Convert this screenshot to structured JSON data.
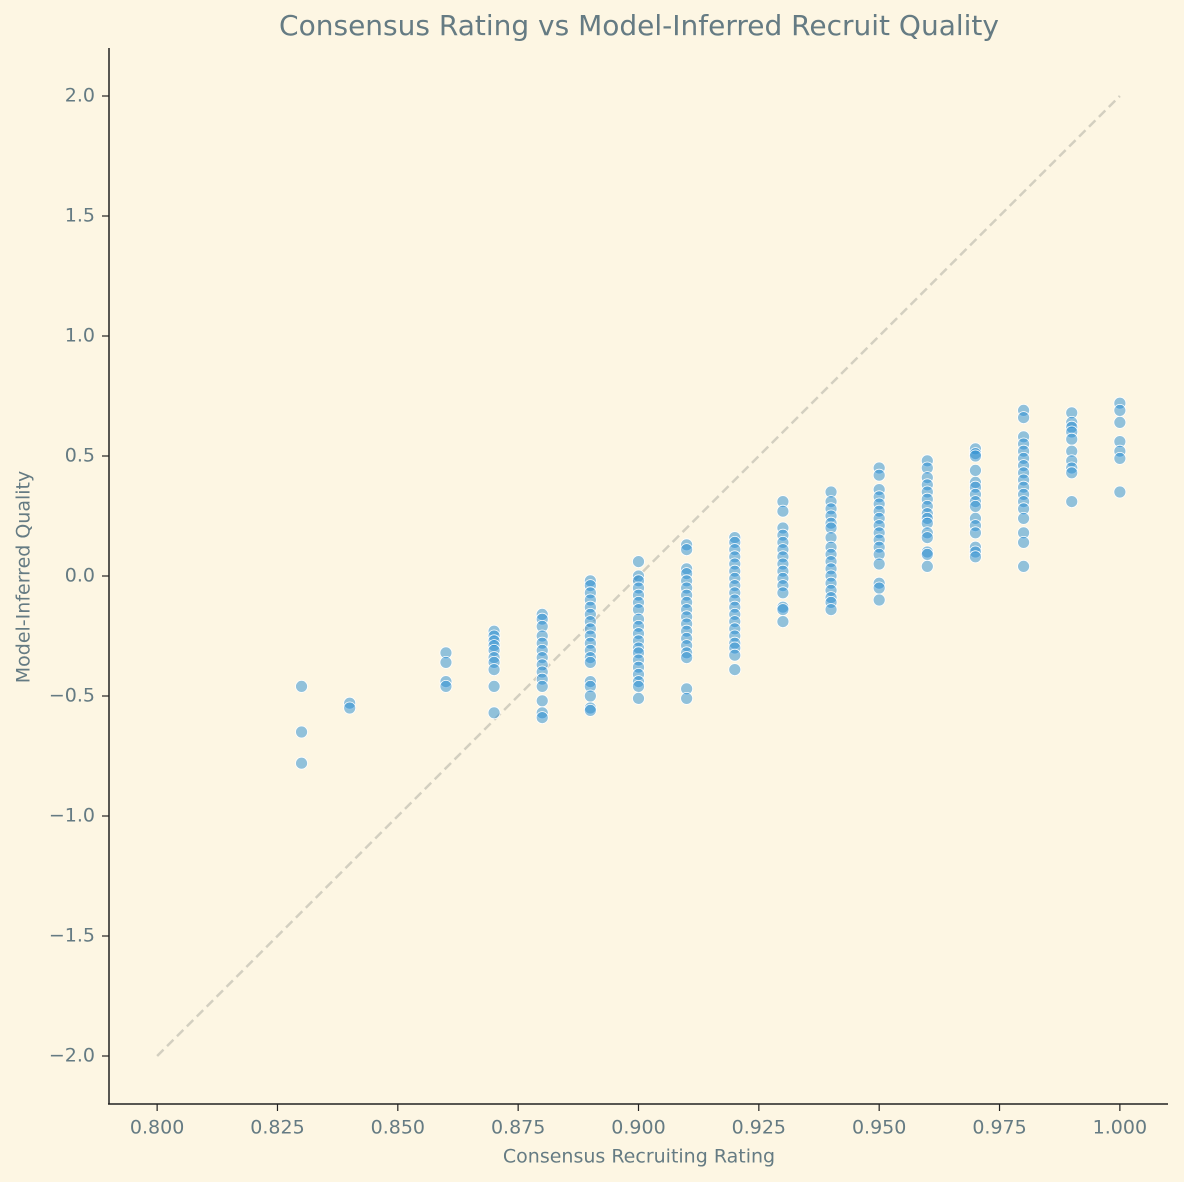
{
  "chart_data": {
    "type": "scatter",
    "title": "Consensus Rating vs Model-Inferred Recruit Quality",
    "x_label": "Consensus Recruiting Rating",
    "y_label": "Model-Inferred Quality",
    "color": "#268bd2",
    "x": [
      0.83,
      0.83,
      0.83,
      0.84,
      0.84,
      0.86,
      0.86,
      0.86,
      0.86,
      0.87,
      0.87,
      0.87,
      0.87,
      0.87,
      0.87,
      0.87,
      0.87,
      0.87,
      0.87,
      0.88,
      0.88,
      0.88,
      0.88,
      0.88,
      0.88,
      0.88,
      0.88,
      0.88,
      0.88,
      0.88,
      0.88,
      0.88,
      0.88,
      0.89,
      0.89,
      0.89,
      0.89,
      0.89,
      0.89,
      0.89,
      0.89,
      0.89,
      0.89,
      0.89,
      0.89,
      0.89,
      0.89,
      0.89,
      0.89,
      0.89,
      0.89,
      0.9,
      0.9,
      0.9,
      0.9,
      0.9,
      0.9,
      0.9,
      0.9,
      0.9,
      0.9,
      0.9,
      0.9,
      0.9,
      0.9,
      0.9,
      0.9,
      0.9,
      0.9,
      0.9,
      0.91,
      0.91,
      0.91,
      0.91,
      0.91,
      0.91,
      0.91,
      0.91,
      0.91,
      0.91,
      0.91,
      0.91,
      0.91,
      0.91,
      0.91,
      0.91,
      0.91,
      0.91,
      0.92,
      0.92,
      0.92,
      0.92,
      0.92,
      0.92,
      0.92,
      0.92,
      0.92,
      0.92,
      0.92,
      0.92,
      0.92,
      0.92,
      0.92,
      0.92,
      0.92,
      0.92,
      0.92,
      0.93,
      0.93,
      0.93,
      0.93,
      0.93,
      0.93,
      0.93,
      0.93,
      0.93,
      0.93,
      0.93,
      0.93,
      0.93,
      0.93,
      0.93,
      0.94,
      0.94,
      0.94,
      0.94,
      0.94,
      0.94,
      0.94,
      0.94,
      0.94,
      0.94,
      0.94,
      0.94,
      0.94,
      0.94,
      0.94,
      0.94,
      0.94,
      0.95,
      0.95,
      0.95,
      0.95,
      0.95,
      0.95,
      0.95,
      0.95,
      0.95,
      0.95,
      0.95,
      0.95,
      0.95,
      0.95,
      0.95,
      0.95,
      0.96,
      0.96,
      0.96,
      0.96,
      0.96,
      0.96,
      0.96,
      0.96,
      0.96,
      0.96,
      0.96,
      0.96,
      0.96,
      0.96,
      0.96,
      0.97,
      0.97,
      0.97,
      0.97,
      0.97,
      0.97,
      0.97,
      0.97,
      0.97,
      0.97,
      0.97,
      0.97,
      0.97,
      0.97,
      0.97,
      0.98,
      0.98,
      0.98,
      0.98,
      0.98,
      0.98,
      0.98,
      0.98,
      0.98,
      0.98,
      0.98,
      0.98,
      0.98,
      0.98,
      0.98,
      0.98,
      0.98,
      0.99,
      0.99,
      0.99,
      0.99,
      0.99,
      0.99,
      0.99,
      0.99,
      0.99,
      0.99,
      1.0,
      1.0,
      1.0,
      1.0,
      1.0,
      1.0,
      1.0
    ],
    "values": [
      -0.46,
      -0.65,
      -0.78,
      -0.53,
      -0.55,
      -0.32,
      -0.36,
      -0.44,
      -0.46,
      -0.23,
      -0.25,
      -0.27,
      -0.29,
      -0.31,
      -0.34,
      -0.36,
      -0.39,
      -0.46,
      -0.57,
      -0.16,
      -0.18,
      -0.21,
      -0.25,
      -0.28,
      -0.31,
      -0.34,
      -0.37,
      -0.4,
      -0.43,
      -0.46,
      -0.52,
      -0.57,
      -0.59,
      -0.02,
      -0.04,
      -0.07,
      -0.1,
      -0.13,
      -0.16,
      -0.19,
      -0.22,
      -0.25,
      -0.28,
      -0.31,
      -0.34,
      -0.36,
      -0.44,
      -0.46,
      -0.5,
      -0.55,
      -0.56,
      0.06,
      0.0,
      -0.02,
      -0.05,
      -0.08,
      -0.11,
      -0.14,
      -0.18,
      -0.21,
      -0.24,
      -0.27,
      -0.3,
      -0.32,
      -0.35,
      -0.38,
      -0.41,
      -0.44,
      -0.46,
      -0.51,
      0.13,
      0.11,
      0.03,
      0.01,
      -0.02,
      -0.05,
      -0.08,
      -0.11,
      -0.14,
      -0.17,
      -0.2,
      -0.23,
      -0.26,
      -0.29,
      -0.32,
      -0.34,
      -0.47,
      -0.51,
      0.16,
      0.14,
      0.11,
      0.08,
      0.05,
      0.02,
      -0.01,
      -0.04,
      -0.07,
      -0.1,
      -0.13,
      -0.16,
      -0.19,
      -0.22,
      -0.25,
      -0.28,
      -0.3,
      -0.33,
      -0.39,
      0.31,
      0.27,
      0.2,
      0.17,
      0.14,
      0.11,
      0.08,
      0.05,
      0.02,
      -0.01,
      -0.04,
      -0.07,
      -0.13,
      -0.14,
      -0.19,
      0.35,
      0.31,
      0.28,
      0.25,
      0.22,
      0.2,
      0.16,
      0.12,
      0.09,
      0.06,
      0.03,
      0.0,
      -0.03,
      -0.06,
      -0.09,
      -0.11,
      -0.14,
      0.45,
      0.42,
      0.36,
      0.33,
      0.3,
      0.27,
      0.24,
      0.21,
      0.18,
      0.15,
      0.12,
      0.09,
      0.05,
      -0.03,
      -0.05,
      -0.1,
      0.48,
      0.45,
      0.41,
      0.38,
      0.35,
      0.32,
      0.29,
      0.26,
      0.24,
      0.22,
      0.18,
      0.16,
      0.1,
      0.09,
      0.04,
      0.53,
      0.51,
      0.5,
      0.44,
      0.39,
      0.37,
      0.34,
      0.31,
      0.29,
      0.24,
      0.21,
      0.18,
      0.12,
      0.1,
      0.08,
      0.69,
      0.66,
      0.58,
      0.55,
      0.52,
      0.49,
      0.46,
      0.43,
      0.4,
      0.37,
      0.34,
      0.31,
      0.28,
      0.24,
      0.18,
      0.14,
      0.04,
      0.68,
      0.64,
      0.62,
      0.6,
      0.57,
      0.52,
      0.48,
      0.45,
      0.43,
      0.31,
      0.72,
      0.69,
      0.64,
      0.56,
      0.52,
      0.49,
      0.35
    ],
    "reference_line": {
      "x": [
        0.8,
        1.0
      ],
      "y": [
        -2.0,
        2.0
      ],
      "color": "#d3cfc0"
    },
    "xlim": [
      0.79,
      1.01
    ],
    "ylim": [
      -2.2,
      2.2
    ],
    "xticks": [
      {
        "value": 0.8,
        "label": "0.800"
      },
      {
        "value": 0.825,
        "label": "0.825"
      },
      {
        "value": 0.85,
        "label": "0.850"
      },
      {
        "value": 0.875,
        "label": "0.875"
      },
      {
        "value": 0.9,
        "label": "0.900"
      },
      {
        "value": 0.925,
        "label": "0.925"
      },
      {
        "value": 0.95,
        "label": "0.950"
      },
      {
        "value": 0.975,
        "label": "0.975"
      },
      {
        "value": 1.0,
        "label": "1.000"
      }
    ],
    "yticks": [
      {
        "value": -2.0,
        "label": "−2.0"
      },
      {
        "value": -1.5,
        "label": "−1.5"
      },
      {
        "value": -1.0,
        "label": "−1.0"
      },
      {
        "value": -0.5,
        "label": "−0.5"
      },
      {
        "value": 0.0,
        "label": "0.0"
      },
      {
        "value": 0.5,
        "label": "0.5"
      },
      {
        "value": 1.0,
        "label": "1.0"
      },
      {
        "value": 1.5,
        "label": "1.5"
      },
      {
        "value": 2.0,
        "label": "2.0"
      }
    ],
    "grid": false
  }
}
